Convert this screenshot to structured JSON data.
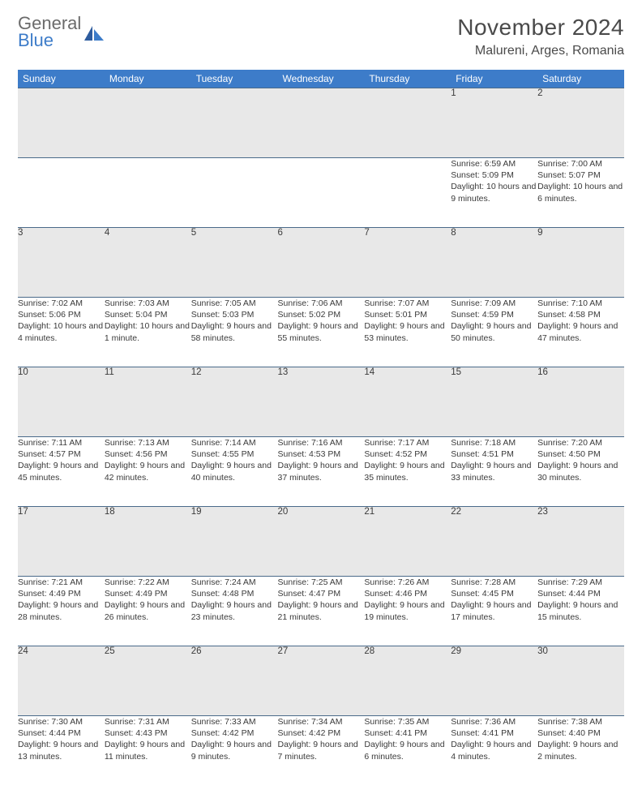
{
  "logo": {
    "text1": "General",
    "text2": "Blue"
  },
  "title": "November 2024",
  "location": "Malureni, Arges, Romania",
  "colors": {
    "header_bg": "#3d7cc9",
    "header_text": "#ffffff",
    "daynum_bg": "#e8e8e8",
    "cell_border": "#4a6a8a",
    "body_text": "#3a3a3a",
    "title_text": "#4a4a4a",
    "logo_gray": "#6b6b6b",
    "logo_blue": "#3d7cc9"
  },
  "weekdays": [
    "Sunday",
    "Monday",
    "Tuesday",
    "Wednesday",
    "Thursday",
    "Friday",
    "Saturday"
  ],
  "weeks": [
    [
      null,
      null,
      null,
      null,
      null,
      {
        "n": "1",
        "sr": "6:59 AM",
        "ss": "5:09 PM",
        "dl": "10 hours and 9 minutes."
      },
      {
        "n": "2",
        "sr": "7:00 AM",
        "ss": "5:07 PM",
        "dl": "10 hours and 6 minutes."
      }
    ],
    [
      {
        "n": "3",
        "sr": "7:02 AM",
        "ss": "5:06 PM",
        "dl": "10 hours and 4 minutes."
      },
      {
        "n": "4",
        "sr": "7:03 AM",
        "ss": "5:04 PM",
        "dl": "10 hours and 1 minute."
      },
      {
        "n": "5",
        "sr": "7:05 AM",
        "ss": "5:03 PM",
        "dl": "9 hours and 58 minutes."
      },
      {
        "n": "6",
        "sr": "7:06 AM",
        "ss": "5:02 PM",
        "dl": "9 hours and 55 minutes."
      },
      {
        "n": "7",
        "sr": "7:07 AM",
        "ss": "5:01 PM",
        "dl": "9 hours and 53 minutes."
      },
      {
        "n": "8",
        "sr": "7:09 AM",
        "ss": "4:59 PM",
        "dl": "9 hours and 50 minutes."
      },
      {
        "n": "9",
        "sr": "7:10 AM",
        "ss": "4:58 PM",
        "dl": "9 hours and 47 minutes."
      }
    ],
    [
      {
        "n": "10",
        "sr": "7:11 AM",
        "ss": "4:57 PM",
        "dl": "9 hours and 45 minutes."
      },
      {
        "n": "11",
        "sr": "7:13 AM",
        "ss": "4:56 PM",
        "dl": "9 hours and 42 minutes."
      },
      {
        "n": "12",
        "sr": "7:14 AM",
        "ss": "4:55 PM",
        "dl": "9 hours and 40 minutes."
      },
      {
        "n": "13",
        "sr": "7:16 AM",
        "ss": "4:53 PM",
        "dl": "9 hours and 37 minutes."
      },
      {
        "n": "14",
        "sr": "7:17 AM",
        "ss": "4:52 PM",
        "dl": "9 hours and 35 minutes."
      },
      {
        "n": "15",
        "sr": "7:18 AM",
        "ss": "4:51 PM",
        "dl": "9 hours and 33 minutes."
      },
      {
        "n": "16",
        "sr": "7:20 AM",
        "ss": "4:50 PM",
        "dl": "9 hours and 30 minutes."
      }
    ],
    [
      {
        "n": "17",
        "sr": "7:21 AM",
        "ss": "4:49 PM",
        "dl": "9 hours and 28 minutes."
      },
      {
        "n": "18",
        "sr": "7:22 AM",
        "ss": "4:49 PM",
        "dl": "9 hours and 26 minutes."
      },
      {
        "n": "19",
        "sr": "7:24 AM",
        "ss": "4:48 PM",
        "dl": "9 hours and 23 minutes."
      },
      {
        "n": "20",
        "sr": "7:25 AM",
        "ss": "4:47 PM",
        "dl": "9 hours and 21 minutes."
      },
      {
        "n": "21",
        "sr": "7:26 AM",
        "ss": "4:46 PM",
        "dl": "9 hours and 19 minutes."
      },
      {
        "n": "22",
        "sr": "7:28 AM",
        "ss": "4:45 PM",
        "dl": "9 hours and 17 minutes."
      },
      {
        "n": "23",
        "sr": "7:29 AM",
        "ss": "4:44 PM",
        "dl": "9 hours and 15 minutes."
      }
    ],
    [
      {
        "n": "24",
        "sr": "7:30 AM",
        "ss": "4:44 PM",
        "dl": "9 hours and 13 minutes."
      },
      {
        "n": "25",
        "sr": "7:31 AM",
        "ss": "4:43 PM",
        "dl": "9 hours and 11 minutes."
      },
      {
        "n": "26",
        "sr": "7:33 AM",
        "ss": "4:42 PM",
        "dl": "9 hours and 9 minutes."
      },
      {
        "n": "27",
        "sr": "7:34 AM",
        "ss": "4:42 PM",
        "dl": "9 hours and 7 minutes."
      },
      {
        "n": "28",
        "sr": "7:35 AM",
        "ss": "4:41 PM",
        "dl": "9 hours and 6 minutes."
      },
      {
        "n": "29",
        "sr": "7:36 AM",
        "ss": "4:41 PM",
        "dl": "9 hours and 4 minutes."
      },
      {
        "n": "30",
        "sr": "7:38 AM",
        "ss": "4:40 PM",
        "dl": "9 hours and 2 minutes."
      }
    ]
  ],
  "labels": {
    "sunrise": "Sunrise: ",
    "sunset": "Sunset: ",
    "daylight": "Daylight: "
  }
}
